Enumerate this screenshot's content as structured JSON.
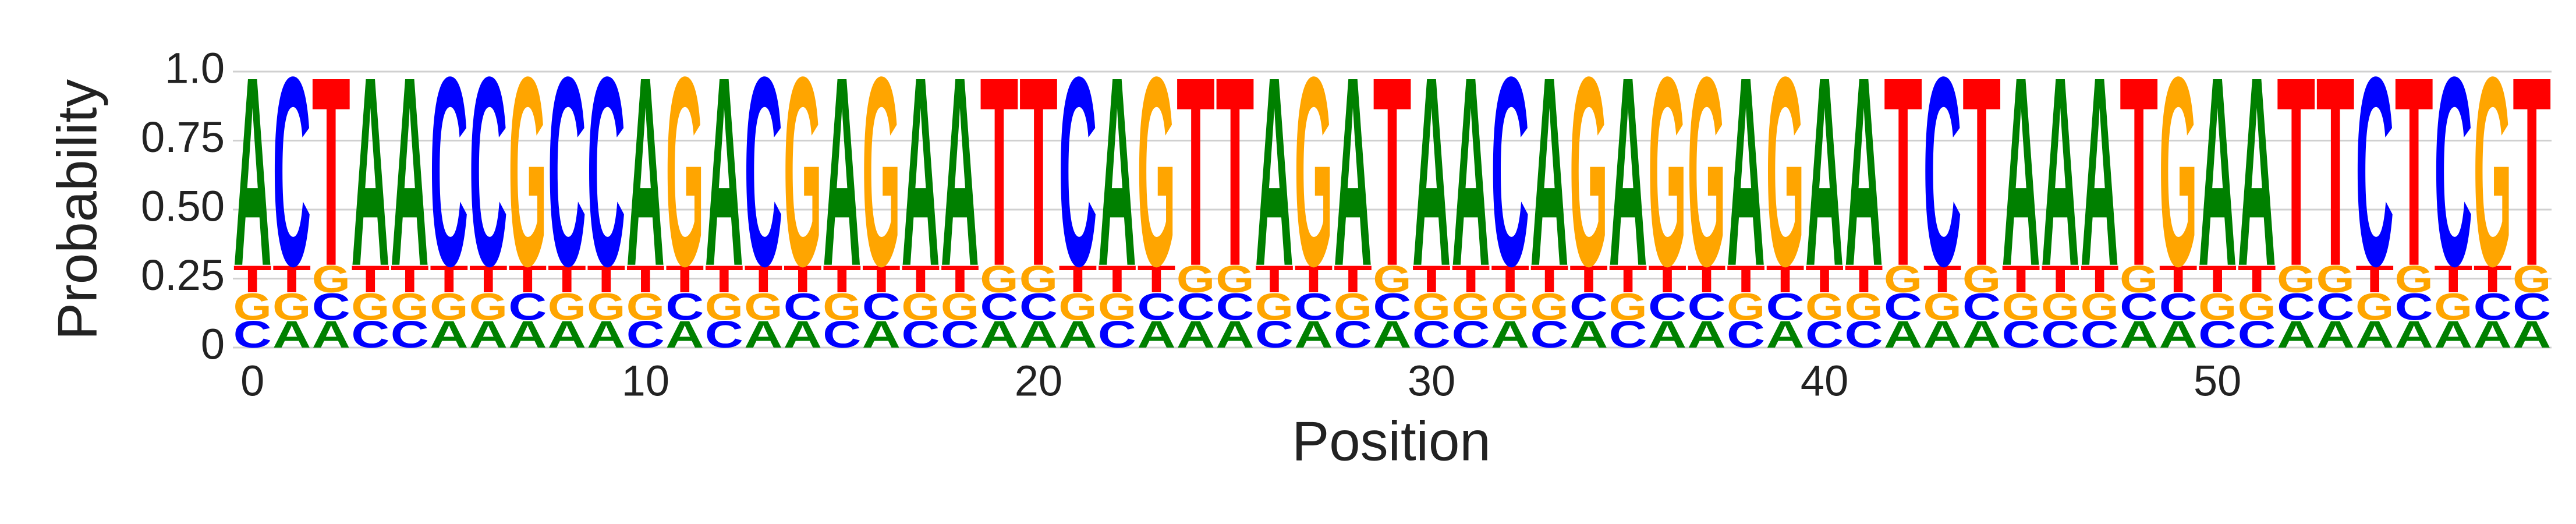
{
  "chart_data": {
    "type": "logo",
    "xlabel": "Position",
    "ylabel": "Probability",
    "x": [
      0,
      1,
      2,
      3,
      4,
      5,
      6,
      7,
      8,
      9,
      10,
      11,
      12,
      13,
      14,
      15,
      16,
      17,
      18,
      19,
      20,
      21,
      22,
      23,
      24,
      25,
      26,
      27,
      28,
      29,
      30,
      31,
      32,
      33,
      34,
      35,
      36,
      37,
      38,
      39,
      40,
      41,
      42,
      43,
      44,
      45,
      46,
      47,
      48,
      49,
      50,
      51,
      52,
      53,
      54,
      55,
      56,
      57,
      58
    ],
    "xlim": [
      -0.5,
      58.5
    ],
    "xticks": [
      0,
      10,
      20,
      30,
      40,
      50
    ],
    "ylim": [
      0,
      1
    ],
    "yticks": [
      0,
      0.25,
      {
        "value": 0.5,
        "label": "0.50"
      },
      0.75,
      {
        "value": 1,
        "label": "1.0"
      }
    ],
    "grid": true,
    "series": [
      {
        "name": "A",
        "color": "#008000",
        "values": [
          0.7,
          0.1,
          0.1,
          0.7,
          0.7,
          0.1,
          0.1,
          0.1,
          0.1,
          0.1,
          0.7,
          0.1,
          0.7,
          0.1,
          0.1,
          0.7,
          0.1,
          0.7,
          0.7,
          0.1,
          0.1,
          0.1,
          0.7,
          0.1,
          0.1,
          0.1,
          0.7,
          0.1,
          0.7,
          0.1,
          0.7,
          0.7,
          0.1,
          0.7,
          0.1,
          0.7,
          0.1,
          0.1,
          0.7,
          0.1,
          0.7,
          0.7,
          0.1,
          0.1,
          0.1,
          0.7,
          0.7,
          0.7,
          0.1,
          0.1,
          0.7,
          0.7,
          0.1,
          0.1,
          0.1,
          0.1,
          0.1,
          0.1,
          0.1
        ]
      },
      {
        "name": "C",
        "color": "#0000ff",
        "values": [
          0.1,
          0.7,
          0.1,
          0.1,
          0.1,
          0.7,
          0.7,
          0.1,
          0.7,
          0.7,
          0.1,
          0.1,
          0.1,
          0.7,
          0.1,
          0.1,
          0.1,
          0.1,
          0.1,
          0.1,
          0.1,
          0.7,
          0.1,
          0.1,
          0.1,
          0.1,
          0.1,
          0.1,
          0.1,
          0.1,
          0.1,
          0.1,
          0.7,
          0.1,
          0.1,
          0.1,
          0.1,
          0.1,
          0.1,
          0.1,
          0.1,
          0.1,
          0.1,
          0.7,
          0.1,
          0.1,
          0.1,
          0.1,
          0.1,
          0.1,
          0.1,
          0.1,
          0.1,
          0.1,
          0.7,
          0.1,
          0.7,
          0.1,
          0.1
        ]
      },
      {
        "name": "G",
        "color": "#ffa500",
        "values": [
          0.1,
          0.1,
          0.1,
          0.1,
          0.1,
          0.1,
          0.1,
          0.7,
          0.1,
          0.1,
          0.1,
          0.7,
          0.1,
          0.1,
          0.7,
          0.1,
          0.7,
          0.1,
          0.1,
          0.1,
          0.1,
          0.1,
          0.1,
          0.7,
          0.1,
          0.1,
          0.1,
          0.7,
          0.1,
          0.1,
          0.1,
          0.1,
          0.1,
          0.1,
          0.7,
          0.1,
          0.7,
          0.7,
          0.1,
          0.7,
          0.1,
          0.1,
          0.1,
          0.1,
          0.1,
          0.1,
          0.1,
          0.1,
          0.1,
          0.7,
          0.1,
          0.1,
          0.1,
          0.1,
          0.1,
          0.1,
          0.1,
          0.7,
          0.1
        ]
      },
      {
        "name": "T",
        "color": "#ff0000",
        "values": [
          0.1,
          0.1,
          0.7,
          0.1,
          0.1,
          0.1,
          0.1,
          0.1,
          0.1,
          0.1,
          0.1,
          0.1,
          0.1,
          0.1,
          0.1,
          0.1,
          0.1,
          0.1,
          0.1,
          0.7,
          0.7,
          0.1,
          0.1,
          0.1,
          0.7,
          0.7,
          0.1,
          0.1,
          0.1,
          0.7,
          0.1,
          0.1,
          0.1,
          0.1,
          0.1,
          0.1,
          0.1,
          0.1,
          0.1,
          0.1,
          0.1,
          0.1,
          0.7,
          0.1,
          0.7,
          0.1,
          0.1,
          0.1,
          0.7,
          0.1,
          0.1,
          0.1,
          0.7,
          0.7,
          0.1,
          0.7,
          0.1,
          0.1,
          0.7
        ]
      }
    ]
  }
}
